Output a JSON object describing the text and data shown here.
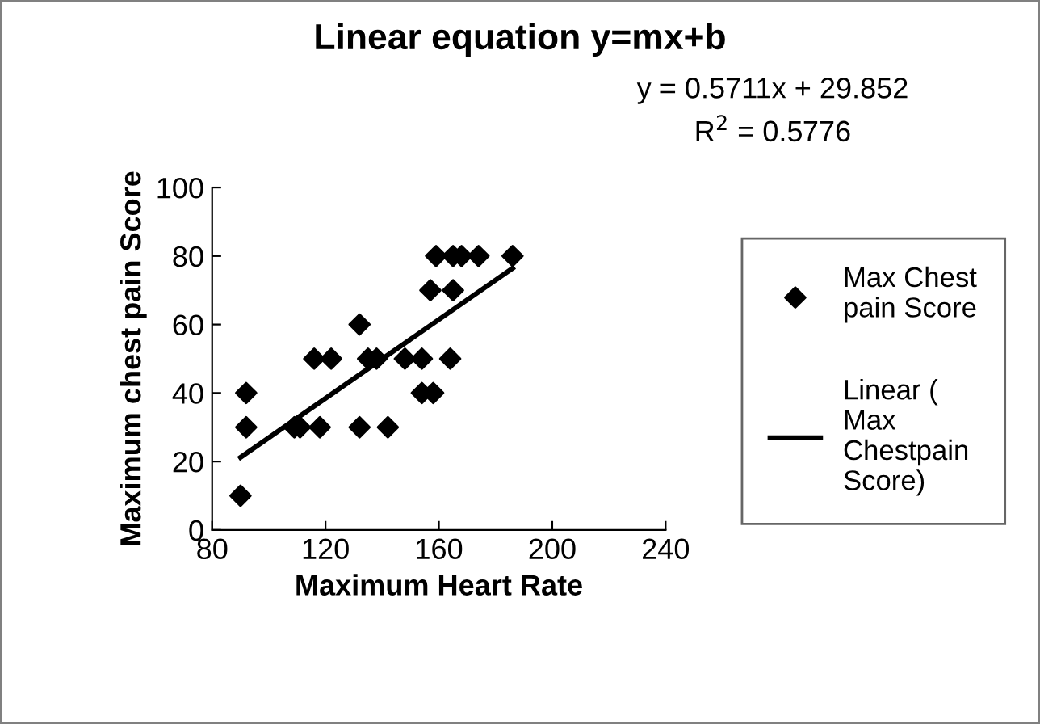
{
  "chart_data": {
    "type": "scatter",
    "title": "Linear equation y=mx+b",
    "xlabel": "Maximum Heart Rate",
    "ylabel": "Maximum chest pain Score",
    "annotations": [
      "y = 0.5711x + 29.852",
      "R$^{2}$ = 0.5776"
    ],
    "series": [
      {
        "name": "Max Chest pain Score",
        "color": "#000000",
        "marker": "diamond",
        "x": [
          90,
          92,
          92,
          109,
          111,
          116,
          122,
          118,
          132,
          132,
          135,
          138,
          142,
          148,
          154,
          154,
          158,
          157,
          159,
          164,
          165,
          165,
          168,
          174,
          186
        ],
        "values": [
          10,
          40,
          30,
          30,
          30,
          50,
          50,
          30,
          60,
          30,
          50,
          50,
          30,
          50,
          50,
          40,
          40,
          70,
          80,
          50,
          70,
          80,
          80,
          80,
          80
        ]
      },
      {
        "name": "Linear ( Max Chestpain Score)",
        "type": "line",
        "color": "#000000",
        "line_style": "solid",
        "marker": "none",
        "x": [
          90,
          186
        ],
        "values": [
          21.2,
          76.4
        ]
      }
    ],
    "xlim": [
      80,
      240
    ],
    "xticks": [
      80,
      120,
      160,
      200,
      240
    ],
    "ylim": [
      0,
      100
    ],
    "yticks": [
      0,
      20,
      40,
      60,
      80,
      100
    ],
    "grid": false,
    "legend": "right"
  }
}
